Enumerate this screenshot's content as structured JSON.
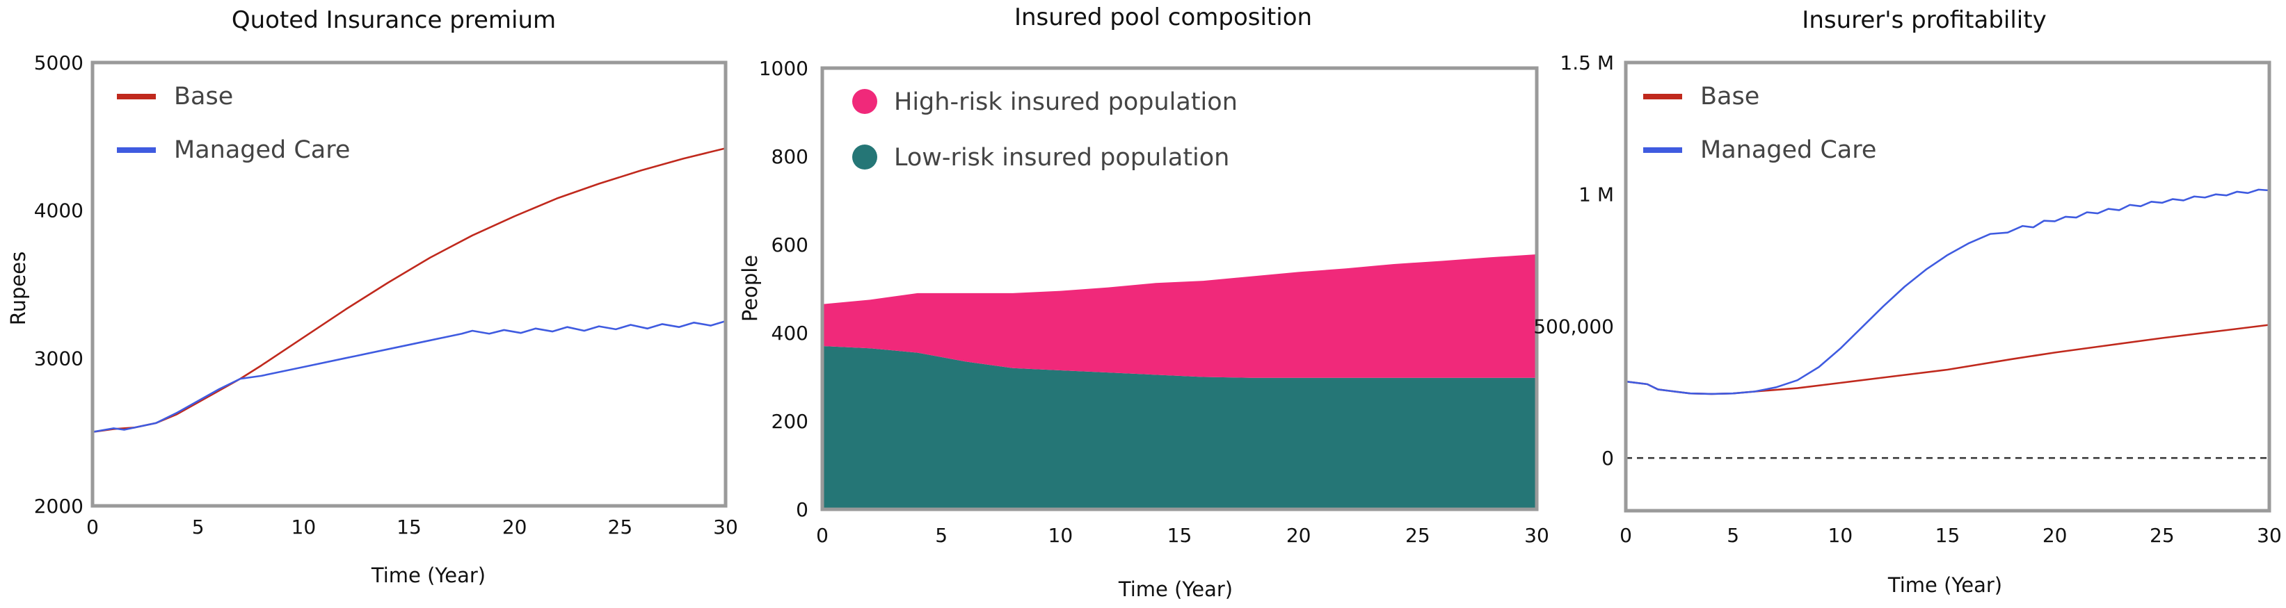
{
  "chart_data": [
    {
      "type": "line",
      "title": "Quoted Insurance premium",
      "xlabel": "Time (Year)",
      "ylabel": "Rupees",
      "xlim": [
        0,
        30
      ],
      "ylim": [
        2000,
        5000
      ],
      "xticks": [
        "0",
        "5",
        "10",
        "15",
        "20",
        "25",
        "30"
      ],
      "yticks": [
        "2000",
        "3000",
        "4000",
        "5000"
      ],
      "legend_position": "top-left",
      "series": [
        {
          "name": "Base",
          "color": "#c0291d",
          "x": [
            0,
            1,
            2,
            3,
            4,
            5,
            6,
            7,
            8,
            10,
            12,
            14,
            16,
            18,
            20,
            22,
            24,
            26,
            28,
            30
          ],
          "y": [
            2500,
            2520,
            2530,
            2560,
            2620,
            2700,
            2780,
            2860,
            2950,
            3140,
            3330,
            3510,
            3680,
            3830,
            3960,
            4080,
            4180,
            4270,
            4350,
            4420
          ]
        },
        {
          "name": "Managed Care",
          "color": "#3f5be0",
          "x": [
            0,
            1,
            1.5,
            2,
            3,
            4,
            5,
            6,
            7,
            8,
            10,
            12,
            14,
            16,
            17.5,
            18,
            18.8,
            19.5,
            20.3,
            21,
            21.8,
            22.5,
            23.3,
            24,
            24.8,
            25.5,
            26.3,
            27,
            27.8,
            28.5,
            29.3,
            30
          ],
          "y": [
            2500,
            2525,
            2515,
            2530,
            2560,
            2630,
            2710,
            2790,
            2860,
            2880,
            2940,
            3000,
            3060,
            3120,
            3165,
            3185,
            3165,
            3190,
            3170,
            3200,
            3180,
            3210,
            3185,
            3215,
            3195,
            3225,
            3200,
            3230,
            3210,
            3240,
            3220,
            3250
          ]
        }
      ]
    },
    {
      "type": "area",
      "title": "Insured pool composition",
      "xlabel": "Time (Year)",
      "ylabel": "People",
      "xlim": [
        0,
        30
      ],
      "ylim": [
        0,
        1000
      ],
      "xticks": [
        "0",
        "5",
        "10",
        "15",
        "20",
        "25",
        "30"
      ],
      "yticks": [
        "0",
        "200",
        "400",
        "600",
        "800",
        "1000"
      ],
      "stacked": true,
      "legend_position": "top-left",
      "x": [
        0,
        2,
        4,
        6,
        8,
        10,
        12,
        14,
        16,
        18,
        20,
        22,
        24,
        26,
        28,
        30
      ],
      "series": [
        {
          "name": "High-risk insured population",
          "color": "#f0297a",
          "values": [
            95,
            110,
            135,
            155,
            170,
            180,
            193,
            208,
            218,
            230,
            240,
            248,
            258,
            265,
            273,
            280
          ]
        },
        {
          "name": "Low-risk insured population",
          "color": "#257676",
          "values": [
            370,
            365,
            355,
            335,
            320,
            315,
            310,
            305,
            300,
            298,
            298,
            298,
            298,
            298,
            298,
            298
          ]
        }
      ]
    },
    {
      "type": "line",
      "title": "Insurer's profitability",
      "xlabel": "Time (Year)",
      "ylabel": "",
      "xlim": [
        0,
        30
      ],
      "ylim": [
        -200000,
        1500000
      ],
      "xticks": [
        "0",
        "5",
        "10",
        "15",
        "20",
        "25",
        "30"
      ],
      "yticks": [
        {
          "value": 0,
          "label": "0"
        },
        {
          "value": 500000,
          "label": "500,000"
        },
        {
          "value": 1000000,
          "label": "1 M"
        },
        {
          "value": 1500000,
          "label": "1.5 M"
        }
      ],
      "reference_line": {
        "y": 0,
        "style": "dashed"
      },
      "legend_position": "top-left",
      "series": [
        {
          "name": "Base",
          "color": "#c0291d",
          "x": [
            0,
            1,
            1.5,
            2,
            3,
            4,
            5,
            6,
            8,
            10,
            12,
            15,
            18,
            20,
            22,
            25,
            28,
            30
          ],
          "y": [
            290000,
            280000,
            260000,
            255000,
            245000,
            243000,
            245000,
            252000,
            265000,
            285000,
            305000,
            335000,
            375000,
            400000,
            422000,
            455000,
            485000,
            505000
          ]
        },
        {
          "name": "Managed Care",
          "color": "#3f5be0",
          "x": [
            0,
            1,
            1.5,
            2,
            3,
            4,
            5,
            6,
            7,
            8,
            9,
            10,
            11,
            12,
            13,
            14,
            15,
            16,
            17,
            17.8,
            18.5,
            19,
            19.5,
            20,
            20.5,
            21,
            21.5,
            22,
            22.5,
            23,
            23.5,
            24,
            24.5,
            25,
            25.5,
            26,
            26.5,
            27,
            27.5,
            28,
            28.5,
            29,
            29.5,
            30
          ],
          "y": [
            290000,
            280000,
            260000,
            255000,
            245000,
            243000,
            245000,
            252000,
            268000,
            295000,
            345000,
            415000,
            495000,
            575000,
            650000,
            715000,
            770000,
            815000,
            850000,
            855000,
            880000,
            875000,
            900000,
            898000,
            915000,
            912000,
            932000,
            928000,
            945000,
            940000,
            960000,
            955000,
            972000,
            968000,
            982000,
            977000,
            992000,
            988000,
            1000000,
            996000,
            1010000,
            1005000,
            1018000,
            1015000
          ]
        }
      ]
    }
  ]
}
